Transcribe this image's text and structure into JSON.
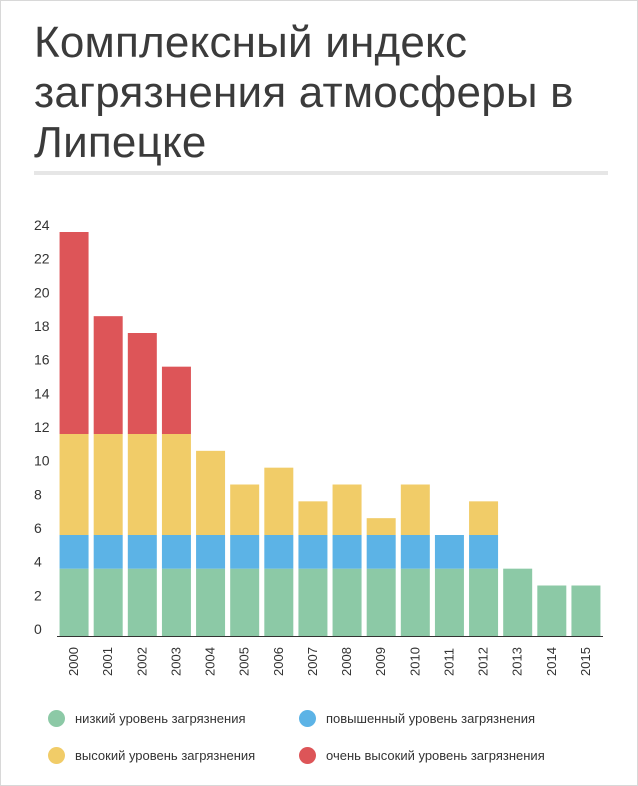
{
  "title": "Комплексный индекс загрязнения атмосферы в Липецке",
  "chart_data": {
    "type": "bar",
    "stacked": true,
    "categories": [
      "2000",
      "2001",
      "2002",
      "2003",
      "2004",
      "2005",
      "2006",
      "2007",
      "2008",
      "2009",
      "2010",
      "2011",
      "2012",
      "2013",
      "2014",
      "2015"
    ],
    "series": [
      {
        "name": "низкий уровень загрязнения",
        "color": "#8cc9a6",
        "values": [
          4,
          4,
          4,
          4,
          4,
          4,
          4,
          4,
          4,
          4,
          4,
          4,
          4,
          4,
          3,
          3
        ]
      },
      {
        "name": "повышенный уровень загрязнения",
        "color": "#5cb3e6",
        "values": [
          2,
          2,
          2,
          2,
          2,
          2,
          2,
          2,
          2,
          2,
          2,
          2,
          2,
          0,
          0,
          0
        ]
      },
      {
        "name": "высокий уровень загрязнения",
        "color": "#f1cc68",
        "values": [
          6,
          6,
          6,
          6,
          5,
          3,
          4,
          2,
          3,
          1,
          3,
          0,
          2,
          0,
          0,
          0
        ]
      },
      {
        "name": "очень высокий уровень загрязнения",
        "color": "#dd5558",
        "values": [
          12,
          7,
          6,
          4,
          0,
          0,
          0,
          0,
          0,
          0,
          0,
          0,
          0,
          0,
          0,
          0
        ]
      }
    ],
    "ylim": [
      0,
      24
    ],
    "yticks": [
      "0",
      "2",
      "4",
      "6",
      "8",
      "10",
      "12",
      "14",
      "16",
      "18",
      "20",
      "22",
      "24"
    ],
    "grid": false,
    "legend_position": "bottom"
  },
  "colors": {
    "title": "#3b3b3b",
    "axis": "#333333"
  }
}
